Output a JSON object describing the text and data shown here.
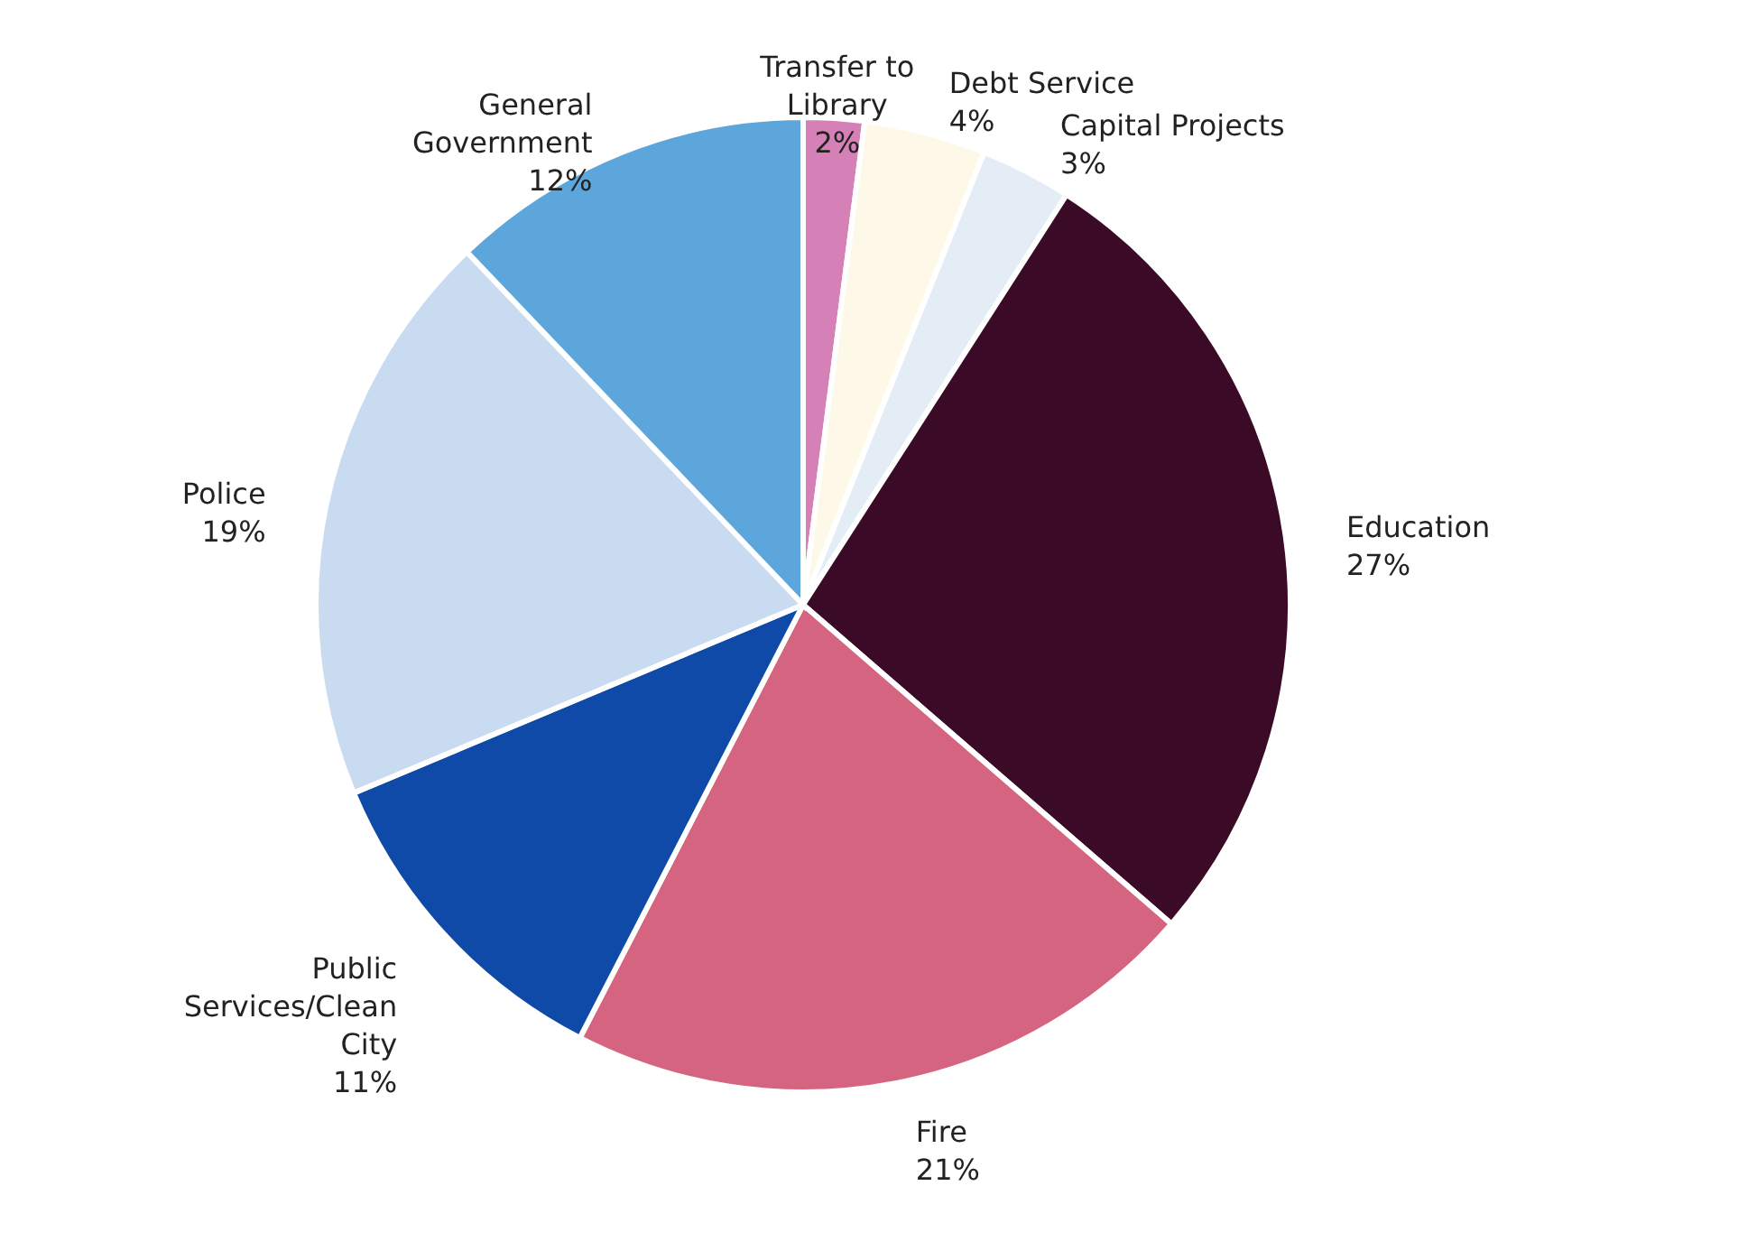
{
  "chart_data": {
    "type": "pie",
    "categories": [
      "Transfer to Library",
      "Debt Service",
      "Capital Projects",
      "Education",
      "Fire",
      "Public Services/Clean City",
      "Police",
      "General Government"
    ],
    "values": [
      2,
      4,
      3,
      27,
      21,
      11,
      19,
      12
    ],
    "value_labels": [
      "2%",
      "4%",
      "3%",
      "27%",
      "21%",
      "11%",
      "19%",
      "12%"
    ],
    "colors": [
      "#d680b8",
      "#fdf8e8",
      "#e4ecf6",
      "#3a0a26",
      "#d4647f",
      "#0f4aa8",
      "#c9dbf0",
      "#5ca6dc"
    ],
    "legend": false
  }
}
